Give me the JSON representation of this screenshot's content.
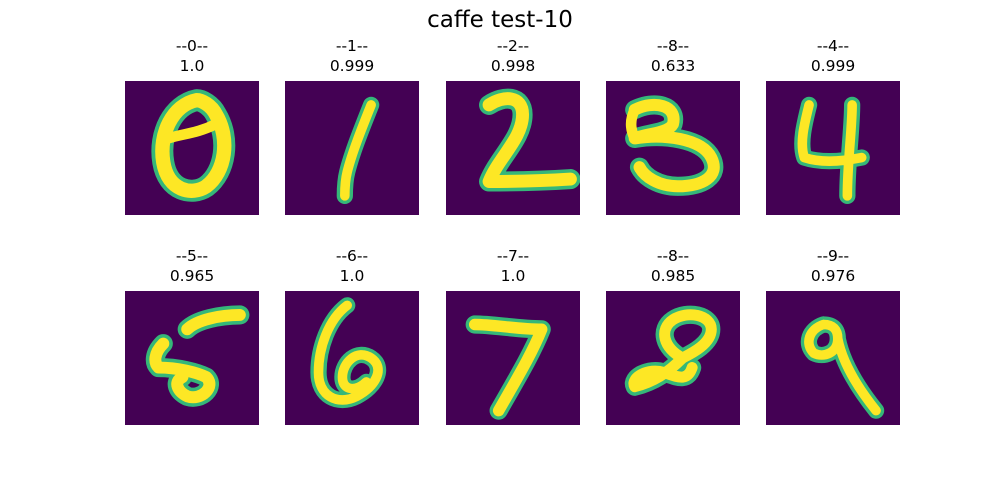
{
  "figure": {
    "title": "caffe test-10"
  },
  "colors": {
    "background": "#440154",
    "stroke_core": "#fde725",
    "stroke_edge": "#35b779"
  },
  "panels": [
    {
      "label": "--0--",
      "score": "1.0"
    },
    {
      "label": "--1--",
      "score": "0.999"
    },
    {
      "label": "--2--",
      "score": "0.998"
    },
    {
      "label": "--8--",
      "score": "0.633"
    },
    {
      "label": "--4--",
      "score": "0.999"
    },
    {
      "label": "--5--",
      "score": "0.965"
    },
    {
      "label": "--6--",
      "score": "1.0"
    },
    {
      "label": "--7--",
      "score": "1.0"
    },
    {
      "label": "--8--",
      "score": "0.985"
    },
    {
      "label": "--9--",
      "score": "0.976"
    }
  ]
}
